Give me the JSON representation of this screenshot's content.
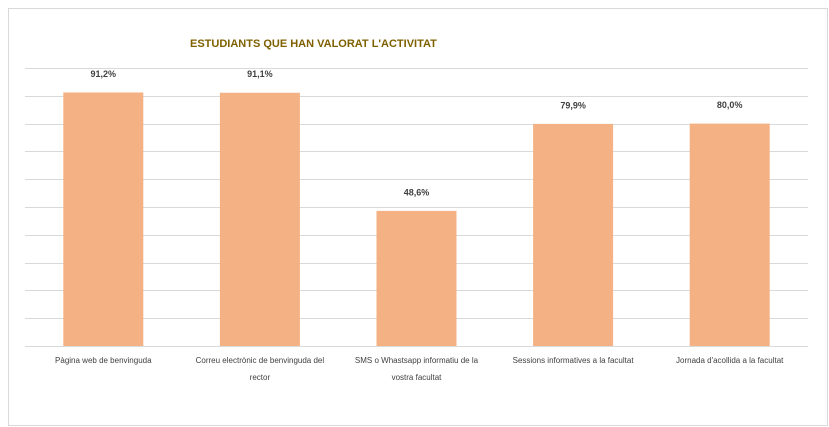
{
  "chart_data": {
    "type": "bar",
    "title": "ESTUDIANTS QUE HAN VALORAT L'ACTIVITAT",
    "categories": [
      "Pàgina web de benvinguda",
      "Correu electrònic de benvinguda del rector",
      "SMS o Whastsapp informatiu de la vostra facultat",
      "Sessions informatives a la facultat",
      "Jornada d'acollida a la facultat"
    ],
    "values": [
      91.2,
      91.1,
      48.6,
      79.9,
      80.0
    ],
    "value_labels": [
      "91,2%",
      "91,1%",
      "48,6%",
      "79,9%",
      "80,0%"
    ],
    "color": "#f4b183",
    "ylim": [
      0,
      100
    ],
    "yticks": [
      0,
      10,
      20,
      30,
      40,
      50,
      60,
      70,
      80,
      90,
      100
    ],
    "grid": true
  }
}
